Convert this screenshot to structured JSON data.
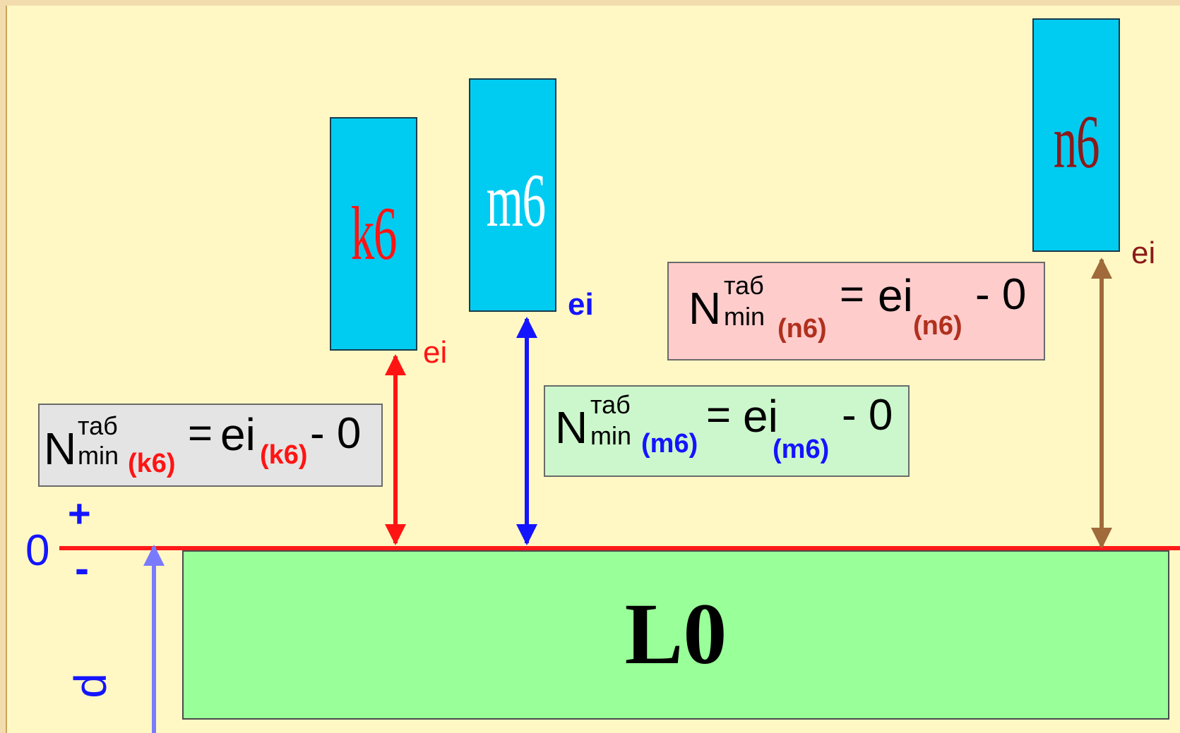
{
  "colors": {
    "background_outer": "#f2dcae",
    "panel": "#fff8c4",
    "zero_line": "#ff1a1a",
    "block_fill": "#00ccf2",
    "base_fill": "#99ff99",
    "red": "#ff1414",
    "blue": "#1414ff",
    "brown": "#a06a3a",
    "dark_red": "#8b1a1a",
    "lavender_arrow": "#7a7aff"
  },
  "blocks": {
    "k6": {
      "label": "k6",
      "color": "#ff1414",
      "ei": "ei"
    },
    "m6": {
      "label": "m6",
      "color": "#ffffff",
      "ei": "ei"
    },
    "n6": {
      "label": "n6",
      "color": "#8b1a1a",
      "ei": "ei"
    }
  },
  "base": {
    "label": "L0"
  },
  "axis": {
    "zero": "0",
    "plus": "+",
    "minus": "-",
    "d": "d"
  },
  "formulas": {
    "k6": {
      "N": "N",
      "sup": "таб",
      "sub": "min",
      "tag": "(k6)",
      "eq": "=",
      "ei": "ei",
      "minus_zero": "- 0",
      "bg": "#e4e4e4",
      "tag_color": "#ff1414"
    },
    "m6": {
      "N": "N",
      "sup": "таб",
      "sub": "min",
      "tag": "(m6)",
      "eq": "=",
      "ei": "ei",
      "minus_zero": "- 0",
      "bg": "#ccf7cc",
      "tag_color": "#1414ff"
    },
    "n6": {
      "N": "N",
      "sup": "таб",
      "sub": "min",
      "tag": "(n6)",
      "eq": "=",
      "ei": "ei",
      "minus_zero": "- 0",
      "bg": "#ffcccc",
      "tag_color": "#b0301e"
    }
  }
}
